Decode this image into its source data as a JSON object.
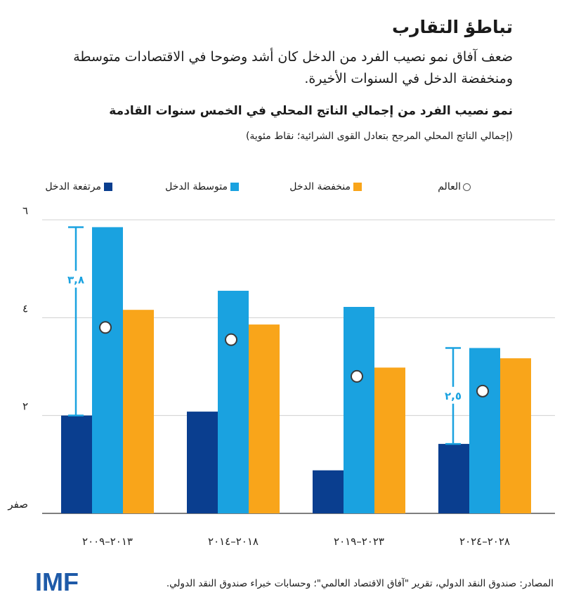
{
  "header": {
    "title": "تباطؤ التقارب",
    "subtitle": "ضعف آفاق نمو نصيب الفرد من الدخل كان أشد وضوحا في الاقتصادات متوسطة ومنخفضة الدخل في السنوات الأخيرة.",
    "chart_title": "نمو نصيب الفرد من إجمالي الناتج المحلي في الخمس سنوات القادمة",
    "chart_subtitle": "(إجمالي الناتج المحلي المرجح بتعادل القوى الشرائية؛ نقاط مئوية)"
  },
  "colors": {
    "high_income": "#0a3e8f",
    "middle_income": "#1aa2e0",
    "low_income": "#f9a51a",
    "gridline": "#d0d0d0",
    "axis": "#333333",
    "annotation": "#1aa2e0"
  },
  "chart_data": {
    "type": "bar",
    "categories": [
      "٢٠١٣–٢٠٠٩",
      "٢٠١٨–٢٠١٤",
      "٢٠٢٣–٢٠١٩",
      "٢٠٢٨–٢٠٢٤"
    ],
    "series": [
      {
        "name": "مرتفعة الدخل",
        "values": [
          2.0,
          2.08,
          0.88,
          1.42
        ]
      },
      {
        "name": "متوسطة الدخل",
        "values": [
          5.85,
          4.55,
          4.22,
          3.38
        ]
      },
      {
        "name": "منخفضة الدخل",
        "values": [
          4.16,
          3.86,
          2.98,
          3.17
        ]
      }
    ],
    "world": {
      "name": "العالم",
      "values": [
        3.8,
        3.55,
        2.8,
        2.5
      ]
    },
    "annotations": [
      {
        "category_index": 0,
        "from": 2.0,
        "to": 5.85,
        "label": "٣,٨"
      },
      {
        "category_index": 3,
        "from": 1.42,
        "to": 3.38,
        "label": "٢,٥"
      }
    ],
    "y_ticks": [
      {
        "value": 0,
        "label": "صفر"
      },
      {
        "value": 2,
        "label": "٢"
      },
      {
        "value": 4,
        "label": "٤"
      },
      {
        "value": 6,
        "label": "٦"
      }
    ],
    "ylim": [
      0,
      6
    ],
    "legend_position": "top"
  },
  "footer": {
    "source": "المصادر: صندوق النقد الدولي، تقرير \"آفاق الاقتصاد العالمي\"؛ وحسابات خبراء صندوق النقد الدولي.",
    "logo_text": "IMF"
  }
}
